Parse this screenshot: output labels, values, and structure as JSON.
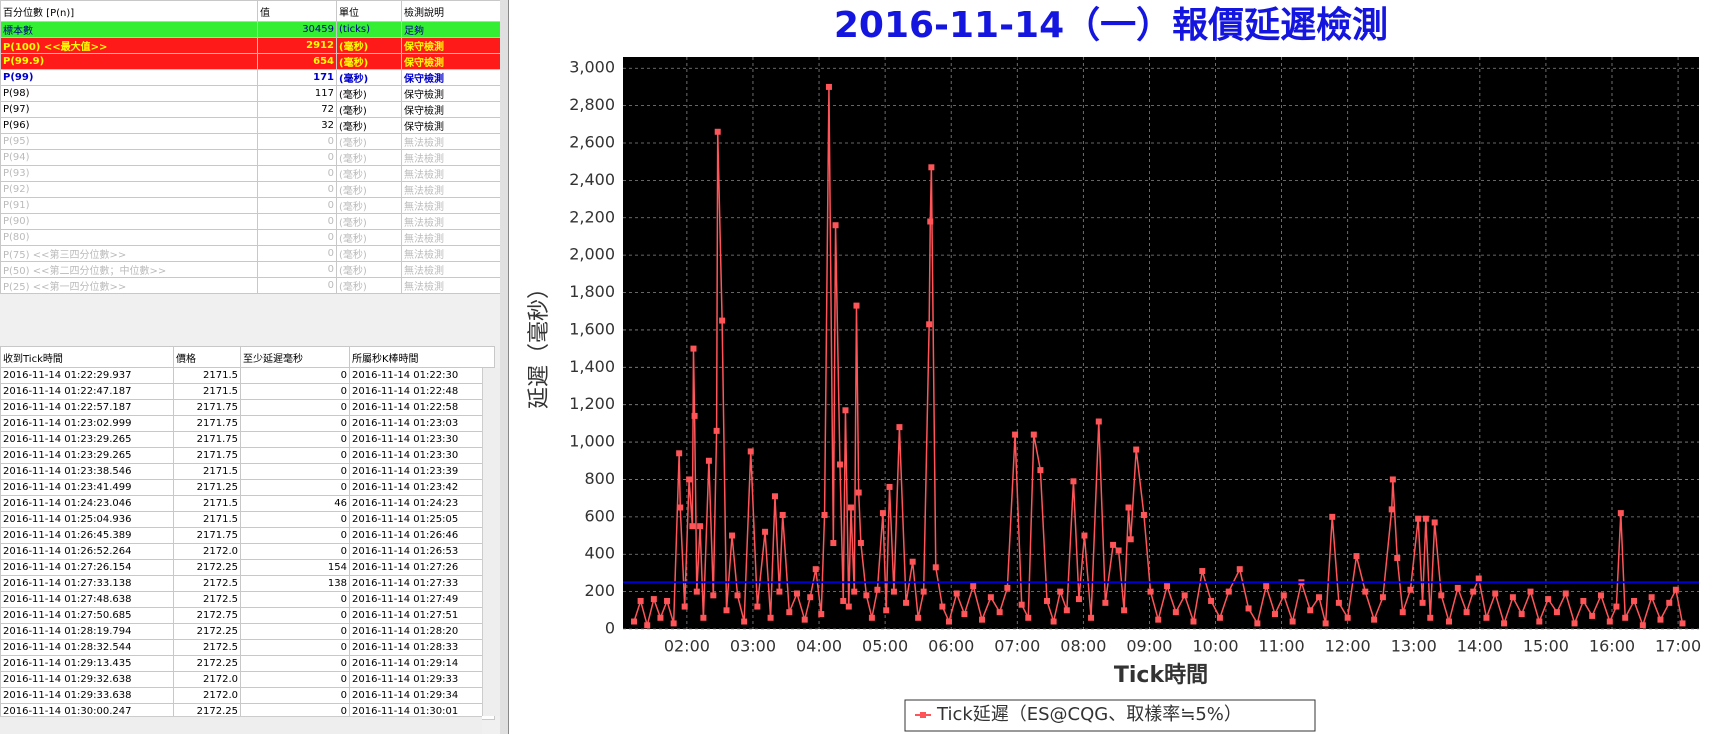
{
  "top_table": {
    "columns": [
      "百分位數 [P(n)]",
      "值",
      "單位",
      "檢測說明"
    ],
    "rows": [
      [
        "標本數",
        "30459",
        "(ticks)",
        "足夠"
      ],
      [
        "P(100)  <<最大值>>",
        "2912",
        "(毫秒)",
        "保守檢測"
      ],
      [
        "P(99.9)",
        "654",
        "(毫秒)",
        "保守檢測"
      ],
      [
        "P(99)",
        "171",
        "(毫秒)",
        "保守檢測"
      ],
      [
        "P(98)",
        "117",
        "(毫秒)",
        "保守檢測"
      ],
      [
        "P(97)",
        "72",
        "(毫秒)",
        "保守檢測"
      ],
      [
        "P(96)",
        "32",
        "(毫秒)",
        "保守檢測"
      ],
      [
        "P(95)",
        "0",
        "(毫秒)",
        "無法檢測"
      ],
      [
        "P(94)",
        "0",
        "(毫秒)",
        "無法檢測"
      ],
      [
        "P(93)",
        "0",
        "(毫秒)",
        "無法檢測"
      ],
      [
        "P(92)",
        "0",
        "(毫秒)",
        "無法檢測"
      ],
      [
        "P(91)",
        "0",
        "(毫秒)",
        "無法檢測"
      ],
      [
        "P(90)",
        "0",
        "(毫秒)",
        "無法檢測"
      ],
      [
        "P(80)",
        "0",
        "(毫秒)",
        "無法檢測"
      ],
      [
        "P(75)  <<第三四分位數>>",
        "0",
        "(毫秒)",
        "無法檢測"
      ],
      [
        "P(50)  <<第二四分位數；中位數>>",
        "0",
        "(毫秒)",
        "無法檢測"
      ],
      [
        "P(25)  <<第一四分位數>>",
        "0",
        "(毫秒)",
        "無法檢測"
      ]
    ]
  },
  "bottom_table": {
    "columns": [
      "收到Tick時間",
      "價格",
      "至少延遲毫秒",
      "所屬秒K棒時間"
    ],
    "rows": [
      [
        "2016-11-14 01:22:29.937",
        "2171.5",
        "0",
        "2016-11-14 01:22:30"
      ],
      [
        "2016-11-14 01:22:47.187",
        "2171.5",
        "0",
        "2016-11-14 01:22:48"
      ],
      [
        "2016-11-14 01:22:57.187",
        "2171.75",
        "0",
        "2016-11-14 01:22:58"
      ],
      [
        "2016-11-14 01:23:02.999",
        "2171.75",
        "0",
        "2016-11-14 01:23:03"
      ],
      [
        "2016-11-14 01:23:29.265",
        "2171.75",
        "0",
        "2016-11-14 01:23:30"
      ],
      [
        "2016-11-14 01:23:29.265",
        "2171.75",
        "0",
        "2016-11-14 01:23:30"
      ],
      [
        "2016-11-14 01:23:38.546",
        "2171.5",
        "0",
        "2016-11-14 01:23:39"
      ],
      [
        "2016-11-14 01:23:41.499",
        "2171.25",
        "0",
        "2016-11-14 01:23:42"
      ],
      [
        "2016-11-14 01:24:23.046",
        "2171.5",
        "46",
        "2016-11-14 01:24:23"
      ],
      [
        "2016-11-14 01:25:04.936",
        "2171.5",
        "0",
        "2016-11-14 01:25:05"
      ],
      [
        "2016-11-14 01:26:45.389",
        "2171.75",
        "0",
        "2016-11-14 01:26:46"
      ],
      [
        "2016-11-14 01:26:52.264",
        "2172.0",
        "0",
        "2016-11-14 01:26:53"
      ],
      [
        "2016-11-14 01:27:26.154",
        "2172.25",
        "154",
        "2016-11-14 01:27:26"
      ],
      [
        "2016-11-14 01:27:33.138",
        "2172.5",
        "138",
        "2016-11-14 01:27:33"
      ],
      [
        "2016-11-14 01:27:48.638",
        "2172.5",
        "0",
        "2016-11-14 01:27:49"
      ],
      [
        "2016-11-14 01:27:50.685",
        "2172.75",
        "0",
        "2016-11-14 01:27:51"
      ],
      [
        "2016-11-14 01:28:19.794",
        "2172.25",
        "0",
        "2016-11-14 01:28:20"
      ],
      [
        "2016-11-14 01:28:32.544",
        "2172.5",
        "0",
        "2016-11-14 01:28:33"
      ],
      [
        "2016-11-14 01:29:13.435",
        "2172.25",
        "0",
        "2016-11-14 01:29:14"
      ],
      [
        "2016-11-14 01:29:32.638",
        "2172.0",
        "0",
        "2016-11-14 01:29:33"
      ],
      [
        "2016-11-14 01:29:33.638",
        "2172.0",
        "0",
        "2016-11-14 01:29:34"
      ],
      [
        "2016-11-14 01:30:00.247",
        "2172.25",
        "0",
        "2016-11-14 01:30:01"
      ]
    ]
  },
  "chart_data": {
    "type": "line",
    "title": "2016-11-14（一）報價延遲檢測",
    "x_label": "Tick時間",
    "y_label": "延遲（毫秒）",
    "xlim": [
      "01:02",
      "17:19"
    ],
    "xticks": [
      "02:00",
      "03:00",
      "04:00",
      "05:00",
      "06:00",
      "07:00",
      "08:00",
      "09:00",
      "10:00",
      "11:00",
      "12:00",
      "13:00",
      "14:00",
      "15:00",
      "16:00",
      "17:00"
    ],
    "ylim": [
      0,
      3060
    ],
    "yticks": [
      0,
      200,
      400,
      600,
      800,
      {
        "value": 1000,
        "label": "1,000"
      },
      {
        "value": 1200,
        "label": "1,200"
      },
      {
        "value": 1400,
        "label": "1,400"
      },
      {
        "value": 1600,
        "label": "1,600"
      },
      {
        "value": 1800,
        "label": "1,800"
      },
      {
        "value": 2000,
        "label": "2,000"
      },
      {
        "value": 2200,
        "label": "2,200"
      },
      {
        "value": 2400,
        "label": "2,400"
      },
      {
        "value": 2600,
        "label": "2,600"
      },
      {
        "value": 2800,
        "label": "2,800"
      },
      {
        "value": 3000,
        "label": "3,000"
      }
    ],
    "grid": true,
    "reference_line": {
      "value": 250,
      "color": "#0000cc"
    },
    "legend": "bottom",
    "series": [
      {
        "name": "Tick延遲（ES@CQG、取樣率≒5%）",
        "color": "#ff5558",
        "x": [
          "01:12",
          "01:18",
          "01:24",
          "01:30",
          "01:36",
          "01:42",
          "01:48",
          "01:53",
          "01:54",
          "01:58",
          "02:02",
          "02:05",
          "02:06",
          "02:07",
          "02:09",
          "02:12",
          "02:15",
          "02:20",
          "02:24",
          "02:27",
          "02:28",
          "02:32",
          "02:36",
          "02:41",
          "02:46",
          "02:52",
          "02:58",
          "03:04",
          "03:11",
          "03:16",
          "03:20",
          "03:24",
          "03:27",
          "03:33",
          "03:40",
          "03:47",
          "03:52",
          "03:57",
          "04:02",
          "04:05",
          "04:09",
          "04:13",
          "04:15",
          "04:19",
          "04:22",
          "04:24",
          "04:27",
          "04:29",
          "04:32",
          "04:34",
          "04:36",
          "04:38",
          "04:43",
          "04:48",
          "04:53",
          "04:58",
          "05:01",
          "05:04",
          "05:08",
          "05:13",
          "05:19",
          "05:25",
          "05:30",
          "05:35",
          "05:40",
          "05:41",
          "05:42",
          "05:46",
          "05:52",
          "05:58",
          "06:05",
          "06:12",
          "06:20",
          "06:28",
          "06:36",
          "06:44",
          "06:51",
          "06:58",
          "07:04",
          "07:10",
          "07:15",
          "07:21",
          "07:27",
          "07:33",
          "07:39",
          "07:45",
          "07:51",
          "07:56",
          "08:01",
          "08:07",
          "08:14",
          "08:20",
          "08:27",
          "08:32",
          "08:37",
          "08:41",
          "08:43",
          "08:48",
          "08:55",
          "09:01",
          "09:08",
          "09:16",
          "09:24",
          "09:32",
          "09:40",
          "09:48",
          "09:56",
          "10:04",
          "10:12",
          "10:22",
          "10:30",
          "10:38",
          "10:46",
          "10:54",
          "11:02",
          "11:10",
          "11:18",
          "11:26",
          "11:34",
          "11:40",
          "11:46",
          "11:52",
          "12:00",
          "12:08",
          "12:16",
          "12:24",
          "12:32",
          "12:40",
          "12:41",
          "12:45",
          "12:50",
          "12:57",
          "13:04",
          "13:08",
          "13:11",
          "13:15",
          "13:19",
          "13:25",
          "13:32",
          "13:40",
          "13:48",
          "13:54",
          "13:59",
          "14:06",
          "14:14",
          "14:22",
          "14:30",
          "14:38",
          "14:46",
          "14:54",
          "15:02",
          "15:10",
          "15:18",
          "15:26",
          "15:34",
          "15:42",
          "15:50",
          "15:58",
          "16:04",
          "16:08",
          "16:12",
          "16:20",
          "16:28",
          "16:36",
          "16:44",
          "16:52",
          "16:58",
          "17:04"
        ],
        "values": [
          40,
          150,
          20,
          160,
          60,
          150,
          30,
          940,
          650,
          120,
          800,
          550,
          1500,
          1140,
          200,
          550,
          60,
          900,
          180,
          1060,
          2660,
          1650,
          100,
          500,
          180,
          40,
          950,
          120,
          520,
          60,
          710,
          200,
          610,
          90,
          190,
          50,
          170,
          320,
          80,
          610,
          2900,
          460,
          2160,
          880,
          150,
          1170,
          120,
          650,
          200,
          1730,
          730,
          460,
          180,
          60,
          210,
          620,
          100,
          760,
          200,
          1080,
          140,
          360,
          60,
          200,
          1630,
          2180,
          2470,
          330,
          120,
          40,
          190,
          80,
          230,
          50,
          170,
          90,
          220,
          1040,
          130,
          60,
          1040,
          850,
          150,
          40,
          200,
          100,
          790,
          160,
          500,
          60,
          1110,
          140,
          450,
          420,
          100,
          650,
          480,
          960,
          610,
          200,
          50,
          230,
          90,
          180,
          40,
          310,
          150,
          60,
          200,
          320,
          110,
          30,
          230,
          80,
          180,
          40,
          250,
          100,
          170,
          30,
          600,
          140,
          60,
          390,
          200,
          50,
          170,
          640,
          800,
          380,
          90,
          210,
          590,
          140,
          590,
          60,
          570,
          180,
          40,
          220,
          90,
          200,
          270,
          60,
          190,
          30,
          170,
          80,
          200,
          40,
          160,
          90,
          190,
          30,
          150,
          70,
          180,
          40,
          120,
          620,
          60,
          150,
          20,
          170,
          50,
          140,
          210,
          30
        ]
      }
    ]
  }
}
